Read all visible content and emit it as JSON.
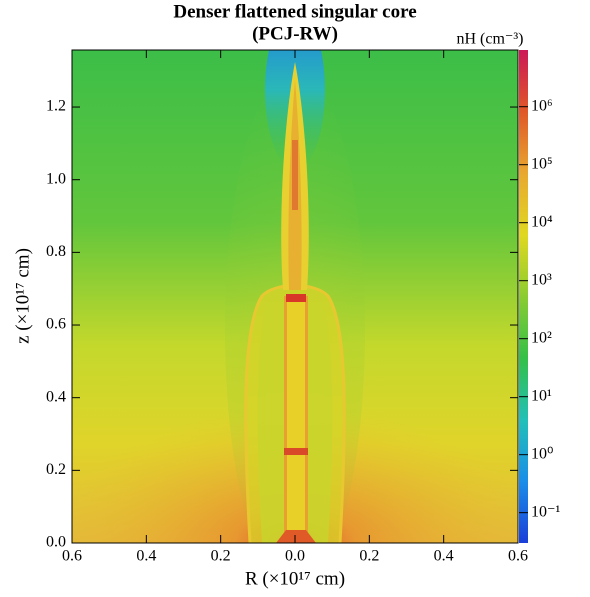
{
  "chart_data": {
    "type": "heatmap",
    "title": "Denser flattened singular core",
    "subtitle": "(PCJ-RW)",
    "x_label": "R (×10¹⁷ cm)",
    "y_label": "z (×10¹⁷ cm)",
    "xlim": [
      -0.6,
      0.6
    ],
    "xticks": [
      {
        "value": -0.6,
        "label": "0.6"
      },
      {
        "value": -0.4,
        "label": "0.4"
      },
      {
        "value": -0.2,
        "label": "0.2"
      },
      {
        "value": 0,
        "label": "0.0"
      },
      0.2,
      0.4,
      0.6
    ],
    "ylim": [
      0,
      1.357
    ],
    "yticks": [
      {
        "value": 0,
        "label": "0.0"
      },
      0.2,
      0.4,
      0.6,
      0.8,
      {
        "value": 1,
        "label": "1.0"
      },
      1.2
    ],
    "colorbar": {
      "label": "nH (cm⁻³)",
      "log_scale": true,
      "lim": [
        0.03,
        9500000
      ],
      "ticks": [
        {
          "value": 0.1,
          "label": "10⁻¹"
        },
        {
          "value": 1,
          "label": "10⁰"
        },
        {
          "value": 10,
          "label": "10¹"
        },
        {
          "value": 100,
          "label": "10²"
        },
        {
          "value": 1000,
          "label": "10³"
        },
        {
          "value": 10000,
          "label": "10⁴"
        },
        {
          "value": 100000,
          "label": "10⁵"
        },
        {
          "value": 1000000,
          "label": "10⁶"
        }
      ],
      "colors": [
        "#1a3fd8",
        "#1a8ee8",
        "#22c0b8",
        "#34c048",
        "#8ccc30",
        "#e0d820",
        "#e8a830",
        "#e05828",
        "#cc1858"
      ]
    }
  }
}
